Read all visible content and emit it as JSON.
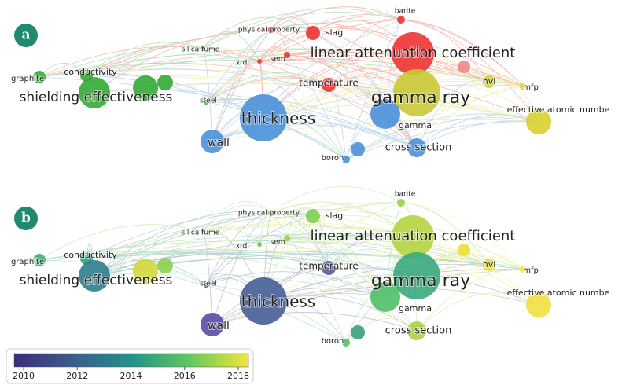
{
  "panels": [
    {
      "letter": "a",
      "nodes": [
        "physical property",
        "barite",
        "slag",
        "silica fume",
        "xrd",
        "sem",
        "linear attenuation coefficient",
        "graphite",
        "conductivity",
        "shielding effectiveness",
        "steel",
        "temperature",
        "gamma ray",
        "hvl",
        "mfp",
        "thickness",
        "effective atomic numbe",
        "gamma",
        "wall",
        "cross section",
        "boron"
      ]
    },
    {
      "letter": "b",
      "nodes": [
        "physical property",
        "barite",
        "slag",
        "silica fume",
        "xrd",
        "sem",
        "linear attenuation coefficient",
        "graphite",
        "conductivity",
        "shielding effectiveness",
        "steel",
        "temperature",
        "gamma ray",
        "hvl",
        "mfp",
        "thickness",
        "effective atomic numbe",
        "gamma",
        "wall",
        "cross section",
        "boron"
      ]
    }
  ],
  "colorbar": {
    "ticks": [
      2010,
      2012,
      2014,
      2016,
      2018
    ]
  }
}
